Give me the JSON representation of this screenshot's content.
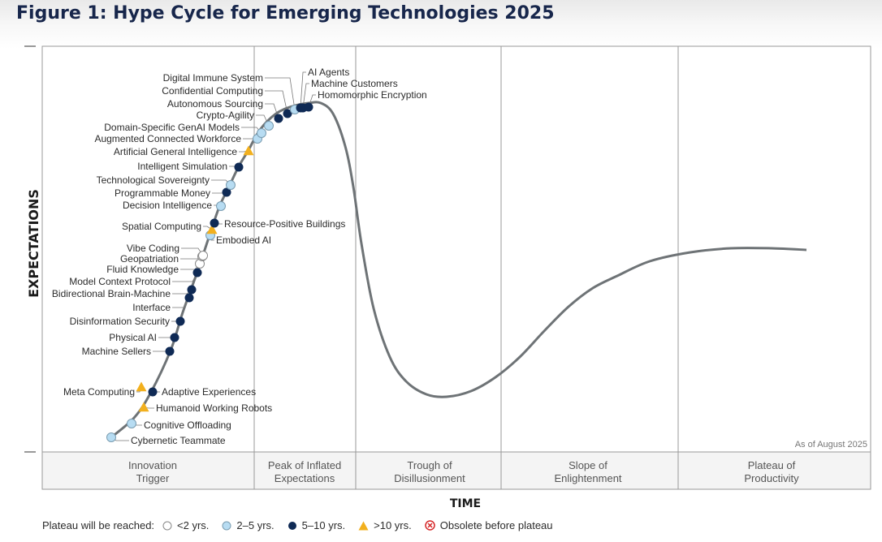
{
  "title": "Figure 1: Hype Cycle for Emerging Technologies 2025",
  "chart_data": {
    "type": "scatter",
    "title": "Figure 1: Hype Cycle for Emerging Technologies 2025",
    "xlabel": "TIME",
    "ylabel": "EXPECTATIONS",
    "annotation": "As of August 2025",
    "phases": [
      "Innovation Trigger",
      "Peak of Inflated Expectations",
      "Trough of Disillusionment",
      "Slope of Enlightenment",
      "Plateau of Productivity"
    ],
    "legend": {
      "title": "Plateau will be reached:",
      "entries": [
        {
          "key": "lt2",
          "label": "<2 yrs.",
          "marker": "open-circle"
        },
        {
          "key": "2to5",
          "label": "2–5 yrs.",
          "marker": "light-blue-circle"
        },
        {
          "key": "5to10",
          "label": "5–10 yrs.",
          "marker": "navy-circle"
        },
        {
          "key": "gt10",
          "label": ">10 yrs.",
          "marker": "yellow-triangle"
        },
        {
          "key": "obsolete",
          "label": "Obsolete before plateau",
          "marker": "red-x-circle"
        }
      ]
    },
    "colors": {
      "lt2": "#ffffff",
      "2to5": "#b7dcf2",
      "5to10": "#0f2a55",
      "gt10": "#f2b01e",
      "obsolete": "#d62728",
      "curve": "#6e7376"
    },
    "curve_path": [
      [
        137,
        539
      ],
      [
        165,
        515
      ],
      [
        185,
        485
      ],
      [
        210,
        432
      ],
      [
        225,
        385
      ],
      [
        243,
        335
      ],
      [
        258,
        290
      ],
      [
        270,
        255
      ],
      [
        282,
        230
      ],
      [
        294,
        205
      ],
      [
        306,
        185
      ],
      [
        320,
        160
      ],
      [
        340,
        140
      ],
      [
        360,
        131
      ],
      [
        380,
        127
      ],
      [
        395,
        127
      ],
      [
        410,
        140
      ],
      [
        425,
        180
      ],
      [
        435,
        230
      ],
      [
        445,
        300
      ],
      [
        460,
        380
      ],
      [
        480,
        440
      ],
      [
        500,
        470
      ],
      [
        525,
        486
      ],
      [
        550,
        489
      ],
      [
        580,
        482
      ],
      [
        610,
        465
      ],
      [
        640,
        440
      ],
      [
        670,
        408
      ],
      [
        700,
        378
      ],
      [
        730,
        355
      ],
      [
        760,
        340
      ],
      [
        800,
        322
      ],
      [
        850,
        311
      ],
      [
        900,
        306
      ],
      [
        950,
        306
      ],
      [
        993,
        308
      ]
    ],
    "technologies": [
      {
        "name": "Cybernetic Teammate",
        "x": 137,
        "y": 539,
        "plateau": "2to5"
      },
      {
        "name": "Cognitive Offloading",
        "x": 162,
        "y": 522,
        "plateau": "2to5"
      },
      {
        "name": "Humanoid Working Robots",
        "x": 177,
        "y": 502,
        "plateau": "gt10"
      },
      {
        "name": "Meta Computing",
        "x": 174,
        "y": 477,
        "plateau": "gt10"
      },
      {
        "name": "Adaptive Experiences",
        "x": 188,
        "y": 483,
        "plateau": "5to10"
      },
      {
        "name": "Machine Sellers",
        "x": 209,
        "y": 433,
        "plateau": "5to10"
      },
      {
        "name": "Physical AI",
        "x": 215,
        "y": 416,
        "plateau": "5to10"
      },
      {
        "name": "Disinformation Security",
        "x": 222,
        "y": 396,
        "plateau": "5to10"
      },
      {
        "name": "Interface",
        "x": 233,
        "y": 367,
        "plateau": "5to10"
      },
      {
        "name": "Bidirectional Brain-Machine",
        "x": 236,
        "y": 357,
        "plateau": "5to10"
      },
      {
        "name": "Model Context Protocol",
        "x": 243,
        "y": 336,
        "plateau": "5to10"
      },
      {
        "name": "Fluid Knowledge",
        "x": 246,
        "y": 325,
        "plateau": "lt2"
      },
      {
        "name": "Geopatriation",
        "x": 249,
        "y": 316,
        "plateau": "lt2"
      },
      {
        "name": "Vibe Coding",
        "x": 250,
        "y": 315,
        "plateau": "lt2"
      },
      {
        "name": "Embodied AI",
        "x": 259,
        "y": 290,
        "plateau": "2to5"
      },
      {
        "name": "Spatial Computing",
        "x": 261,
        "y": 283,
        "plateau": "gt10"
      },
      {
        "name": "Resource-Positive Buildings",
        "x": 264,
        "y": 275,
        "plateau": "5to10"
      },
      {
        "name": "Decision Intelligence",
        "x": 272,
        "y": 254,
        "plateau": "2to5"
      },
      {
        "name": "Programmable Money",
        "x": 279,
        "y": 237,
        "plateau": "5to10"
      },
      {
        "name": "Technological Sovereignty",
        "x": 284,
        "y": 228,
        "plateau": "2to5"
      },
      {
        "name": "Intelligent Simulation",
        "x": 294,
        "y": 206,
        "plateau": "5to10"
      },
      {
        "name": "Artificial General Intelligence",
        "x": 306,
        "y": 186,
        "plateau": "gt10"
      },
      {
        "name": "Augmented Connected Workforce",
        "x": 317,
        "y": 171,
        "plateau": "2to5"
      },
      {
        "name": "Domain-Specific GenAI Models",
        "x": 322,
        "y": 164,
        "plateau": "2to5"
      },
      {
        "name": "Crypto-Agility",
        "x": 331,
        "y": 155,
        "plateau": "2to5"
      },
      {
        "name": "Autonomous Sourcing",
        "x": 343,
        "y": 146,
        "plateau": "5to10"
      },
      {
        "name": "Confidential Computing",
        "x": 354,
        "y": 140,
        "plateau": "5to10"
      },
      {
        "name": "Digital Immune System",
        "x": 363,
        "y": 135,
        "plateau": "2to5"
      },
      {
        "name": "AI Agents",
        "x": 370,
        "y": 133,
        "plateau": "5to10"
      },
      {
        "name": "Machine Customers",
        "x": 373,
        "y": 133,
        "plateau": "5to10"
      },
      {
        "name": "Homomorphic Encryption",
        "x": 380,
        "y": 132,
        "plateau": "5to10"
      }
    ]
  }
}
